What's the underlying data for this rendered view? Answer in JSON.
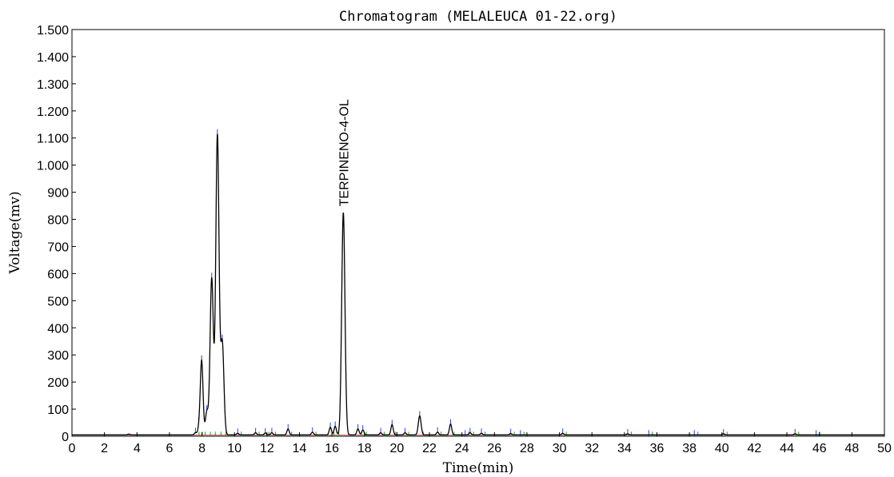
{
  "chart_data": {
    "type": "line",
    "title": "Chromatogram (MELALEUCA 01-22.org)",
    "xlabel": "Time(min)",
    "ylabel": "Voltage(mv)",
    "xlim": [
      0,
      50
    ],
    "ylim": [
      0,
      1500
    ],
    "x_ticks": [
      0,
      2,
      4,
      6,
      8,
      10,
      12,
      14,
      16,
      18,
      20,
      22,
      24,
      26,
      28,
      30,
      32,
      34,
      36,
      38,
      40,
      42,
      44,
      46,
      48,
      50
    ],
    "x_tick_labels": [
      "0",
      "2",
      "4",
      "6",
      "8",
      "10",
      "12",
      "14",
      "16",
      "18",
      "20",
      "22",
      "24",
      "26",
      "28",
      "30",
      "32",
      "34",
      "36",
      "38",
      "40",
      "42",
      "44",
      "46",
      "48",
      "50"
    ],
    "y_ticks": [
      0,
      100,
      200,
      300,
      400,
      500,
      600,
      700,
      800,
      900,
      1000,
      1100,
      1200,
      1300,
      1400,
      1500
    ],
    "y_tick_labels": [
      "0",
      "100",
      "200",
      "300",
      "400",
      "500",
      "600",
      "700",
      "800",
      "900",
      "1.000",
      "1.100",
      "1.200",
      "1.300",
      "1.400",
      "1.500"
    ],
    "grid": false,
    "baseline_mv": 5,
    "series": [
      {
        "peaks": [
          {
            "rt": 3.5,
            "height": 3
          },
          {
            "rt": 7.6,
            "height": 8
          },
          {
            "rt": 7.8,
            "height": 20
          },
          {
            "rt": 7.98,
            "height": 275
          },
          {
            "rt": 8.3,
            "height": 85
          },
          {
            "rt": 8.6,
            "height": 578
          },
          {
            "rt": 8.95,
            "height": 1105
          },
          {
            "rt": 9.25,
            "height": 340
          },
          {
            "rt": 10.2,
            "height": 6
          },
          {
            "rt": 11.3,
            "height": 8
          },
          {
            "rt": 11.9,
            "height": 7
          },
          {
            "rt": 12.3,
            "height": 8
          },
          {
            "rt": 13.3,
            "height": 22
          },
          {
            "rt": 14.8,
            "height": 10
          },
          {
            "rt": 15.9,
            "height": 28
          },
          {
            "rt": 16.2,
            "height": 32
          },
          {
            "rt": 16.7,
            "height": 820
          },
          {
            "rt": 17.6,
            "height": 22
          },
          {
            "rt": 17.9,
            "height": 18
          },
          {
            "rt": 19.0,
            "height": 8
          },
          {
            "rt": 19.7,
            "height": 38
          },
          {
            "rt": 20.5,
            "height": 8
          },
          {
            "rt": 21.4,
            "height": 70
          },
          {
            "rt": 22.5,
            "height": 10
          },
          {
            "rt": 23.3,
            "height": 40
          },
          {
            "rt": 24.5,
            "height": 8
          },
          {
            "rt": 25.2,
            "height": 6
          },
          {
            "rt": 27.0,
            "height": 5
          },
          {
            "rt": 30.2,
            "height": 6
          },
          {
            "rt": 34.2,
            "height": 4
          },
          {
            "rt": 40.1,
            "height": 4
          },
          {
            "rt": 44.5,
            "height": 4
          }
        ],
        "markers": [
          7.6,
          7.8,
          7.98,
          8.3,
          8.6,
          8.95,
          9.25,
          10.2,
          11.3,
          11.9,
          12.3,
          13.3,
          14.8,
          15.9,
          16.2,
          17.6,
          17.9,
          19.0,
          19.7,
          20.5,
          21.4,
          22.5,
          23.3,
          24.2,
          24.5,
          25.2,
          27.0,
          27.6,
          30.2,
          34.2,
          35.5,
          38.3,
          40.1,
          44.5,
          45.8
        ]
      }
    ],
    "annotations": [
      {
        "text": "TERPINENO-4-OL",
        "x": 16.7,
        "y": 830,
        "orientation": "vertical"
      }
    ],
    "colors": {
      "trace": "#000000",
      "peak_marker": "#2040ff",
      "boundary_marker": "#20a020",
      "baseline": "#c02020"
    }
  }
}
